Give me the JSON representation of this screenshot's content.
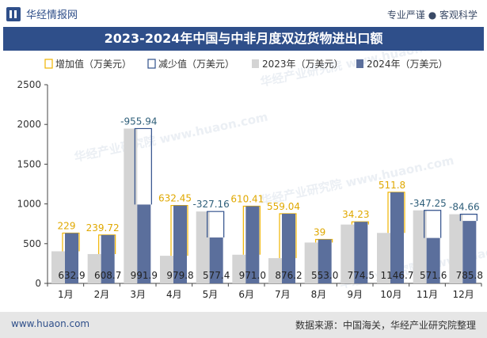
{
  "header": {
    "brand": "华经情报网",
    "tagline": "专业严谨 ● 客观科学"
  },
  "footer": {
    "site": "www.huaon.com",
    "source": "数据来源：中国海关，华经产业研究院整理"
  },
  "watermark": "华经产业研究院 www.huaon.com",
  "colors": {
    "bar2023": "#d4d4d4",
    "bar2024": "#5b6f9c",
    "increase": "#f0b400",
    "decrease": "#2f4f8a",
    "increase_label": "#e0a800",
    "decrease_label": "#2f5f7a",
    "title_bg": "#2f4f8a"
  },
  "chart_data": {
    "type": "bar",
    "title": "2023-2024年中国与中非月度双边货物进出口额",
    "categories": [
      "1月",
      "2月",
      "3月",
      "4月",
      "5月",
      "6月",
      "7月",
      "8月",
      "9月",
      "10月",
      "11月",
      "12月"
    ],
    "ylim": [
      0,
      2500
    ],
    "yticks": [
      0,
      500,
      1000,
      1500,
      2000,
      2500
    ],
    "legend_position": "top",
    "series": [
      {
        "name": "2023年（万美元）",
        "values": [
          403.9,
          369.0,
          1947.8,
          347.4,
          904.6,
          360.6,
          317.2,
          514.0,
          740.3,
          635.0,
          918.8,
          870.5
        ]
      },
      {
        "name": "2024年（万美元）",
        "values": [
          632.9,
          608.7,
          991.9,
          979.8,
          577.4,
          971.0,
          876.2,
          553.0,
          774.5,
          1146.7,
          571.6,
          785.8
        ]
      }
    ],
    "change_series": [
      {
        "name": "增加值（万美元）",
        "kind": "increase"
      },
      {
        "name": "减少值（万美元）",
        "kind": "decrease"
      }
    ],
    "change_labels": [
      "229",
      "239.72",
      "-955.94",
      "632.45",
      "-327.16",
      "610.41",
      "559.04",
      "39",
      "34.23",
      "511.8",
      "-347.25",
      "-84.66"
    ],
    "value_labels_2024": [
      "632.9",
      "608.7",
      "991.9",
      "979.8",
      "577.4",
      "971.0",
      "876.2",
      "553.0",
      "774.5",
      "1146.7",
      "571.6",
      "785.8"
    ]
  }
}
